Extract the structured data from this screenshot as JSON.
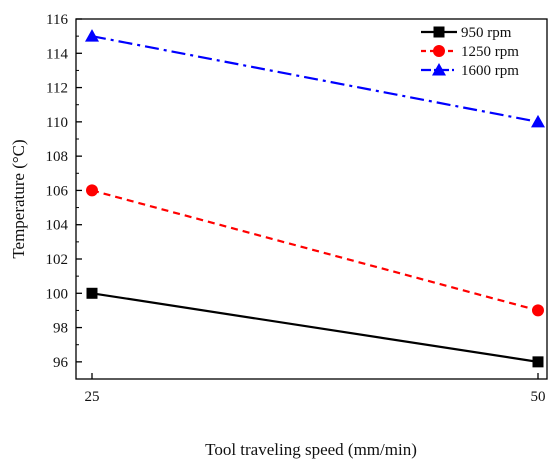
{
  "chart_data": {
    "type": "line",
    "title": "",
    "xlabel": "Tool traveling speed (mm/min)",
    "ylabel": "Temperature (°C)",
    "x": [
      25,
      50
    ],
    "xticks": [
      "25",
      "50"
    ],
    "yticks": [
      "96",
      "98",
      "100",
      "102",
      "104",
      "106",
      "108",
      "110",
      "112",
      "114",
      "116"
    ],
    "ylim": [
      95,
      116
    ],
    "grid": false,
    "legend_position": "top-right",
    "series": [
      {
        "name": "950 rpm",
        "values": [
          100,
          96
        ],
        "color": "#000000",
        "dash": "solid",
        "marker": "square"
      },
      {
        "name": "1250 rpm",
        "values": [
          106,
          99
        ],
        "color": "#ff0000",
        "dash": "dashed",
        "marker": "circle"
      },
      {
        "name": "1600 rpm",
        "values": [
          115,
          110
        ],
        "color": "#0000ff",
        "dash": "dash-dot",
        "marker": "triangle"
      }
    ]
  }
}
